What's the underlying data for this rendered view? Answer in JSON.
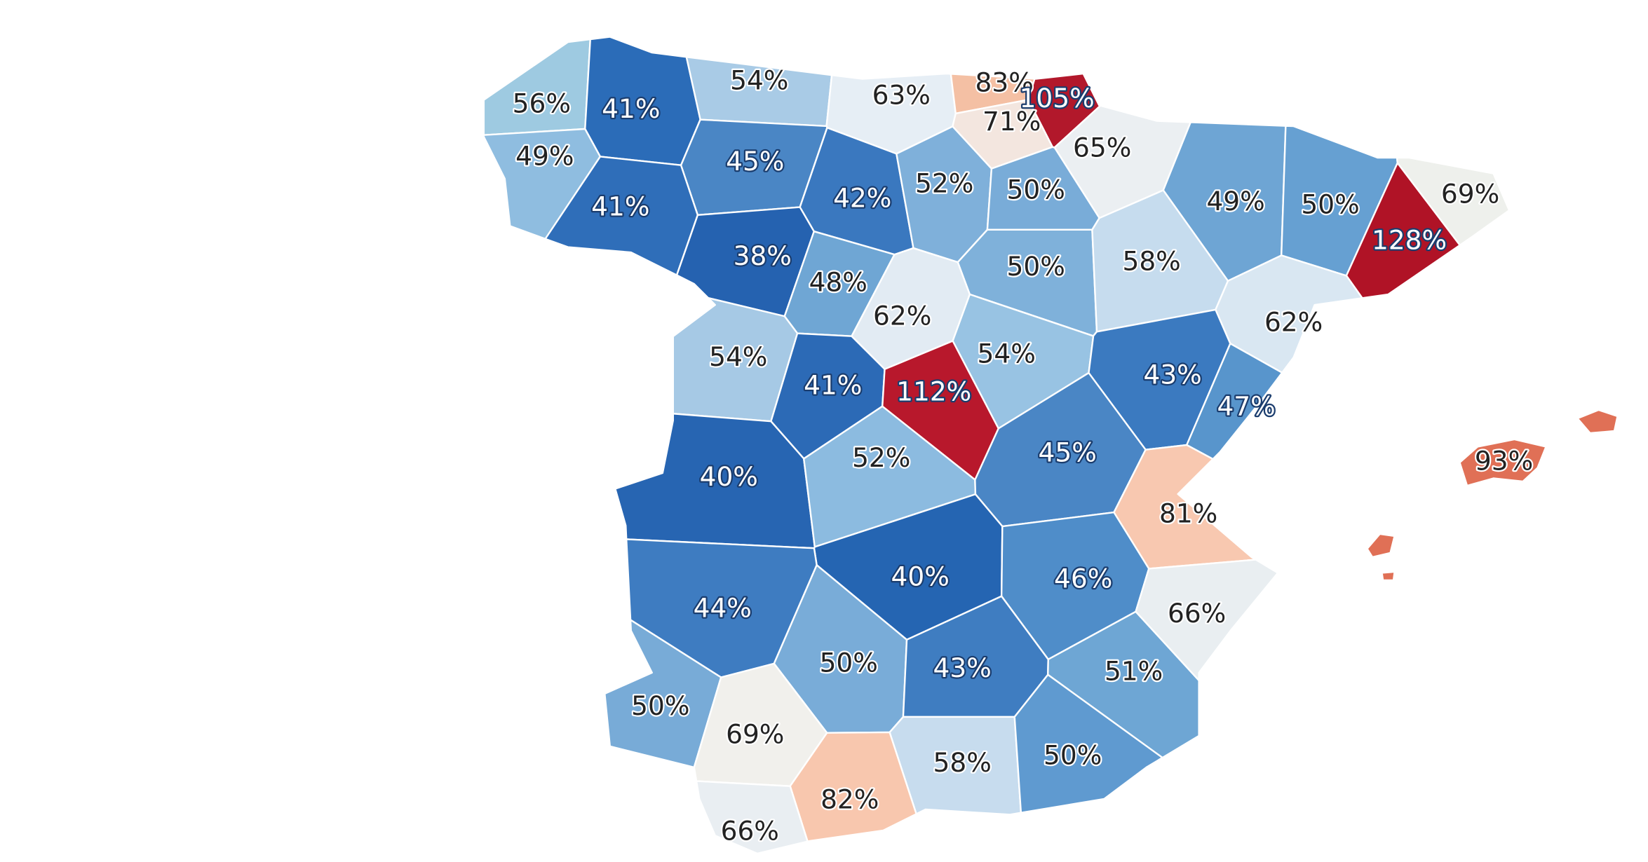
{
  "chart_data": {
    "type": "map",
    "values": [
      56,
      41,
      54,
      63,
      83,
      105,
      71,
      65,
      49,
      45,
      42,
      52,
      50,
      41,
      49,
      50,
      69,
      128,
      38,
      48,
      50,
      58,
      62,
      62,
      54,
      54,
      41,
      112,
      43,
      47,
      40,
      52,
      45,
      81,
      93,
      40,
      46,
      44,
      66,
      50,
      43,
      51,
      50,
      69,
      58,
      50,
      82,
      66
    ],
    "value_labels": [
      "56%",
      "41%",
      "54%",
      "63%",
      "83%",
      "105%",
      "71%",
      "65%",
      "49%",
      "45%",
      "42%",
      "52%",
      "50%",
      "41%",
      "49%",
      "50%",
      "69%",
      "128%",
      "38%",
      "48%",
      "50%",
      "58%",
      "62%",
      "62%",
      "54%",
      "54%",
      "41%",
      "112%",
      "43%",
      "47%",
      "40%",
      "52%",
      "45%",
      "81%",
      "93%",
      "40%",
      "46%",
      "44%",
      "66%",
      "50%",
      "43%",
      "51%",
      "50%",
      "69%",
      "58%",
      "50%",
      "82%",
      "66%"
    ],
    "colors": [
      "#9ecae1",
      "#2b6cb8",
      "#a9cbe6",
      "#e6eef5",
      "#f4c0a4",
      "#b2182b",
      "#f3e6df",
      "#ebeff2",
      "#8fbde0",
      "#4a86c5",
      "#3a78bf",
      "#7fb0da",
      "#79acd8",
      "#2f6eb9",
      "#6ea5d4",
      "#66a0d2",
      "#eef0ec",
      "#b01326",
      "#2562b0",
      "#6fa6d4",
      "#7fb1da",
      "#c6dcee",
      "#e2ebf3",
      "#d9e7f2",
      "#a6c9e5",
      "#98c3e3",
      "#2c6ab6",
      "#b8182c",
      "#3b7ac0",
      "#5895cc",
      "#2765b2",
      "#8cbbe0",
      "#4a86c5",
      "#f8c8b0",
      "#e07056",
      "#2565b2",
      "#4f8dc9",
      "#3e7cc1",
      "#e9eef1",
      "#79acd8",
      "#3f7dc1",
      "#6ea6d4",
      "#78abd7",
      "#f1f0ec",
      "#c7dcee",
      "#5f9ad0",
      "#f8c7ae",
      "#e9eef2"
    ]
  }
}
